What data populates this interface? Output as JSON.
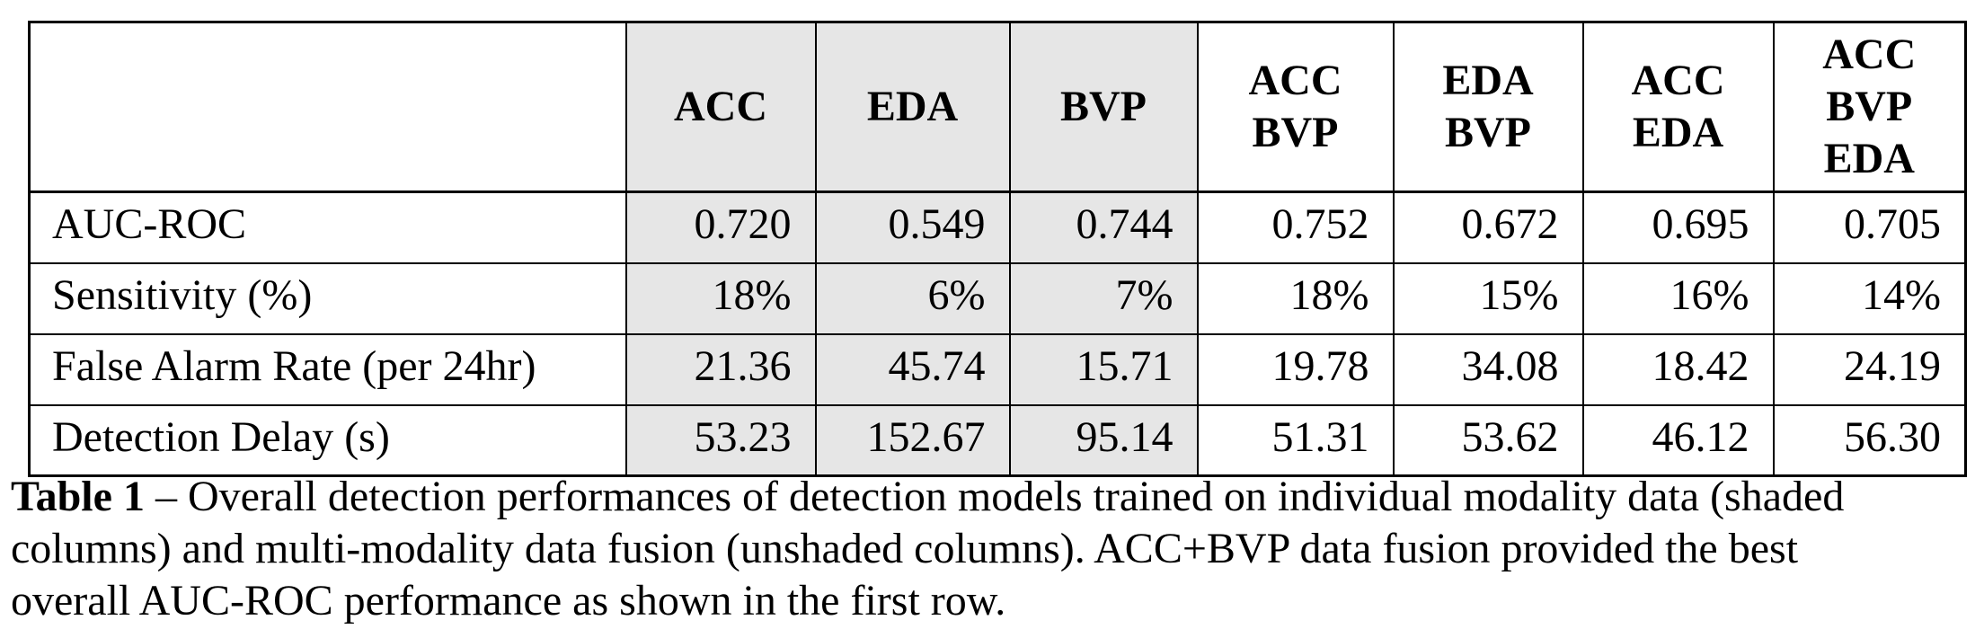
{
  "colors": {
    "shaded_column_bg": "#e6e6e6",
    "border": "#000000",
    "text": "#000000",
    "page_bg": "#ffffff"
  },
  "table": {
    "corner_label": "",
    "columns": [
      {
        "label": "ACC",
        "shaded": true
      },
      {
        "label": "EDA",
        "shaded": true
      },
      {
        "label": "BVP",
        "shaded": true
      },
      {
        "label": "ACC\nBVP",
        "shaded": false
      },
      {
        "label": "EDA\nBVP",
        "shaded": false
      },
      {
        "label": "ACC\nEDA",
        "shaded": false
      },
      {
        "label": "ACC\nBVP\nEDA",
        "shaded": false
      }
    ],
    "rows": [
      {
        "label": "AUC-ROC",
        "values": [
          "0.720",
          "0.549",
          "0.744",
          "0.752",
          "0.672",
          "0.695",
          "0.705"
        ]
      },
      {
        "label": "Sensitivity (%)",
        "values": [
          "18%",
          "6%",
          "7%",
          "18%",
          "15%",
          "16%",
          "14%"
        ]
      },
      {
        "label": "False Alarm Rate (per 24hr)",
        "values": [
          "21.36",
          "45.74",
          "15.71",
          "19.78",
          "34.08",
          "18.42",
          "24.19"
        ]
      },
      {
        "label": "Detection Delay (s)",
        "values": [
          "53.23",
          "152.67",
          "95.14",
          "51.31",
          "53.62",
          "46.12",
          "56.30"
        ]
      }
    ]
  },
  "caption": {
    "label": "Table 1",
    "line1": "– Overall detection performances of detection models trained on individual modality data (shaded",
    "line2": "columns) and multi-modality data fusion (unshaded columns). ACC+BVP data fusion provided the best",
    "line3": "overall AUC-ROC performance as shown in the first row."
  }
}
